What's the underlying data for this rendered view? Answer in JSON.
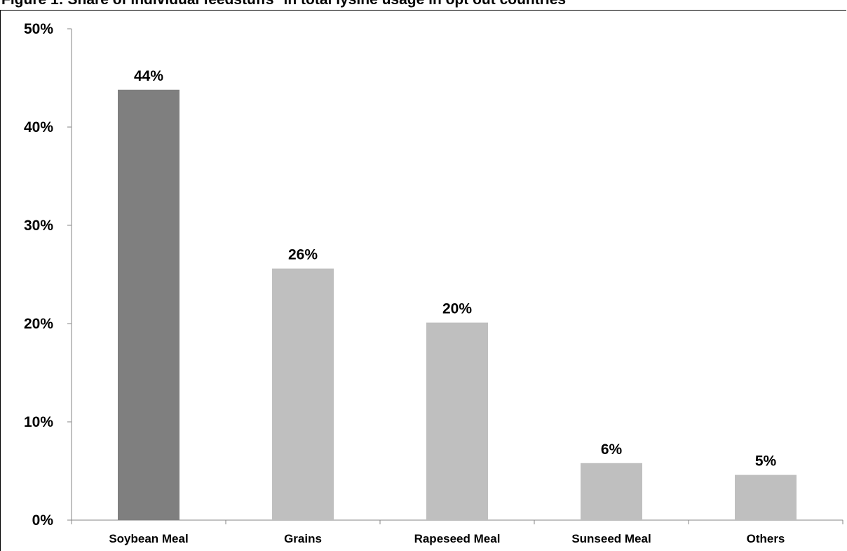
{
  "chart_data": {
    "type": "bar",
    "title": "Figure 1: Share of individual feedstuffs* in total lysine usage in opt out countries",
    "categories": [
      "Soybean Meal",
      "Grains",
      "Rapeseed Meal",
      "Sunseed Meal",
      "Others"
    ],
    "values": [
      43.8,
      25.6,
      20.1,
      5.8,
      4.6
    ],
    "data_labels": [
      "44%",
      "26%",
      "20%",
      "6%",
      "5%"
    ],
    "bar_colors": [
      "#7f7f7f",
      "#bfbfbf",
      "#bfbfbf",
      "#bfbfbf",
      "#bfbfbf"
    ],
    "ylim": [
      0,
      50
    ],
    "yticks": [
      0,
      10,
      20,
      30,
      40,
      50
    ],
    "ytick_labels": [
      "0%",
      "10%",
      "20%",
      "30%",
      "40%",
      "50%"
    ],
    "xlabel": "",
    "ylabel": "",
    "grid": false,
    "legend": null
  }
}
